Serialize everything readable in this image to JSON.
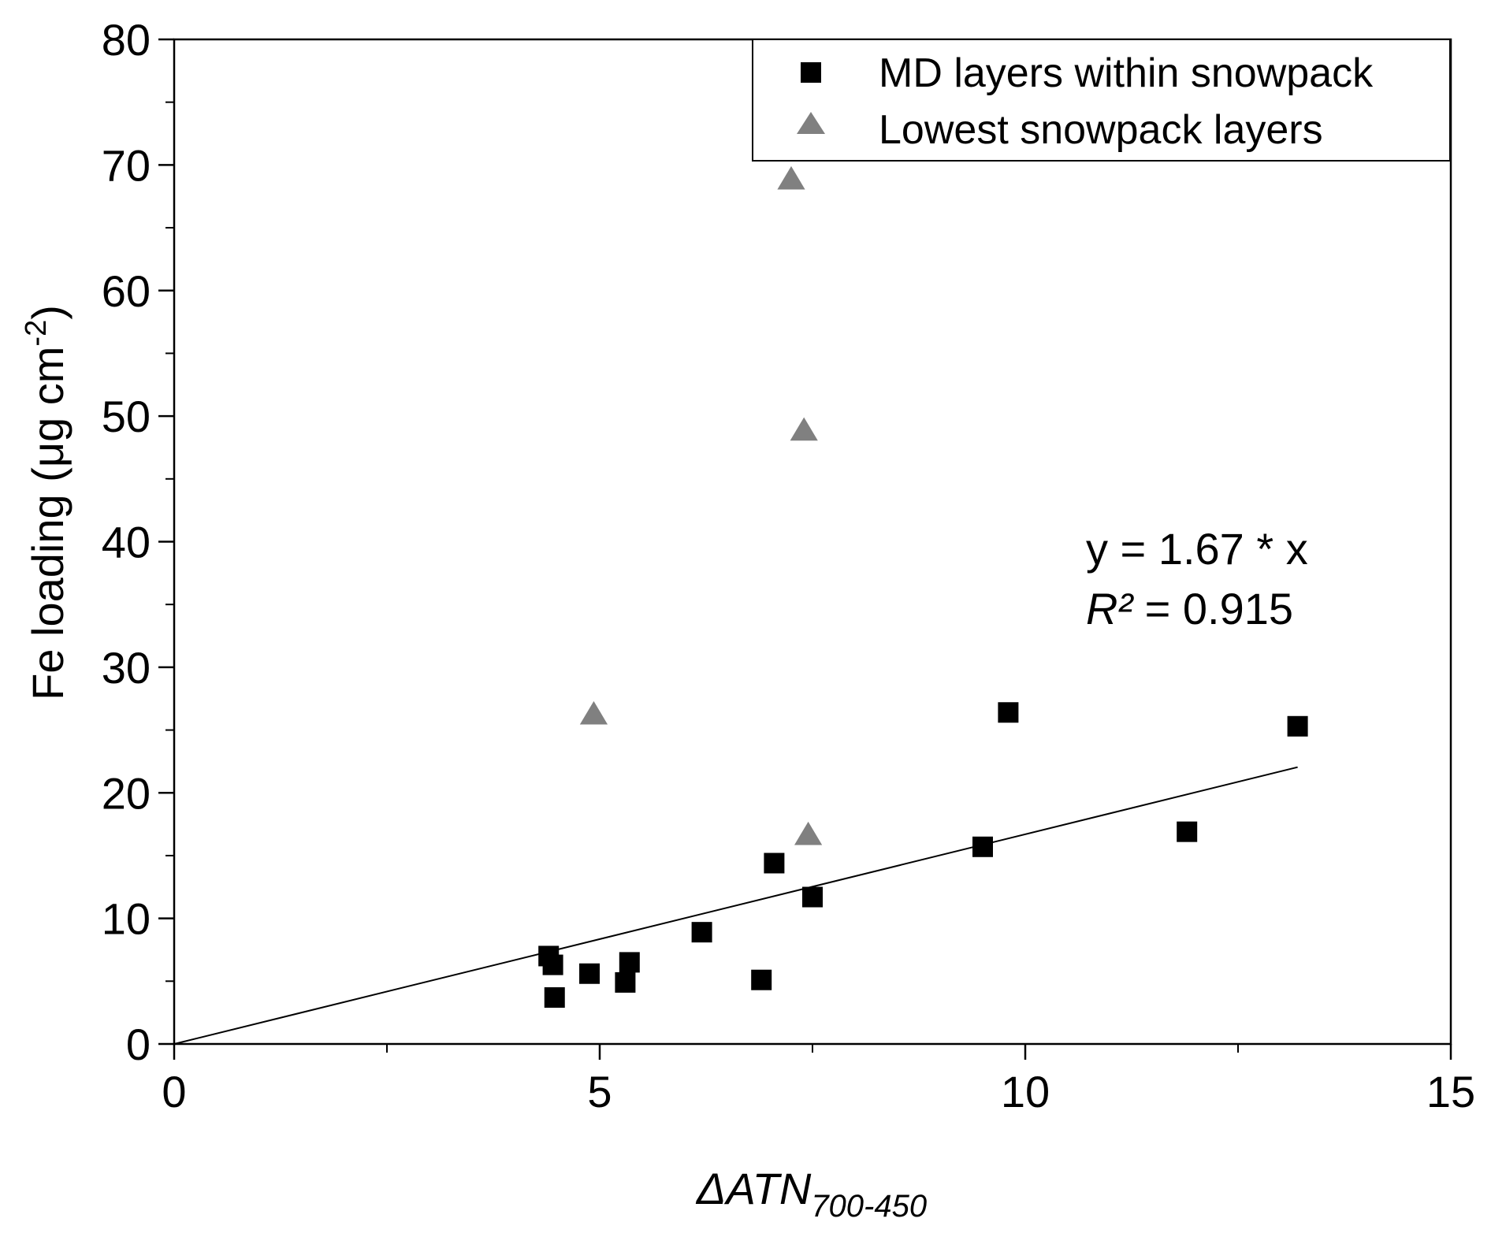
{
  "chart_data": {
    "type": "scatter",
    "title": "",
    "xlabel": {
      "main": "ΔATN",
      "sub": "700-450"
    },
    "ylabel": {
      "main": "Fe loading (μg cm",
      "sup": "-2",
      "close": ")"
    },
    "xlim": [
      0,
      15
    ],
    "ylim": [
      0,
      80
    ],
    "xticks": [
      0,
      5,
      10,
      15
    ],
    "yticks": [
      0,
      10,
      20,
      30,
      40,
      50,
      60,
      70,
      80
    ],
    "x_minor_step": 2.5,
    "y_minor_step": 5,
    "grid": false,
    "legend_position": "top-right",
    "series": [
      {
        "name": "MD layers within snowpack",
        "marker": "square",
        "color": "#000000",
        "points": [
          {
            "x": 4.4,
            "y": 7.0
          },
          {
            "x": 4.45,
            "y": 6.3
          },
          {
            "x": 4.47,
            "y": 3.7
          },
          {
            "x": 4.88,
            "y": 5.6
          },
          {
            "x": 5.3,
            "y": 4.9
          },
          {
            "x": 5.35,
            "y": 6.5
          },
          {
            "x": 6.2,
            "y": 8.9
          },
          {
            "x": 6.9,
            "y": 5.1
          },
          {
            "x": 7.05,
            "y": 14.4
          },
          {
            "x": 7.5,
            "y": 11.7
          },
          {
            "x": 9.5,
            "y": 15.7
          },
          {
            "x": 9.8,
            "y": 26.4
          },
          {
            "x": 11.9,
            "y": 16.9
          },
          {
            "x": 13.2,
            "y": 25.3
          }
        ]
      },
      {
        "name": "Lowest snowpack layers",
        "marker": "triangle",
        "color": "#808080",
        "points": [
          {
            "x": 4.93,
            "y": 26.3
          },
          {
            "x": 7.25,
            "y": 68.9
          },
          {
            "x": 7.4,
            "y": 48.9
          },
          {
            "x": 7.45,
            "y": 16.7
          }
        ]
      }
    ],
    "fit_line": {
      "slope": 1.67,
      "x_range": [
        0,
        13.2
      ],
      "color": "#000000"
    },
    "annotations": {
      "equation": "y = 1.67 * x",
      "r2_symbol": "R²",
      "r2_rest": " = 0.915"
    }
  }
}
